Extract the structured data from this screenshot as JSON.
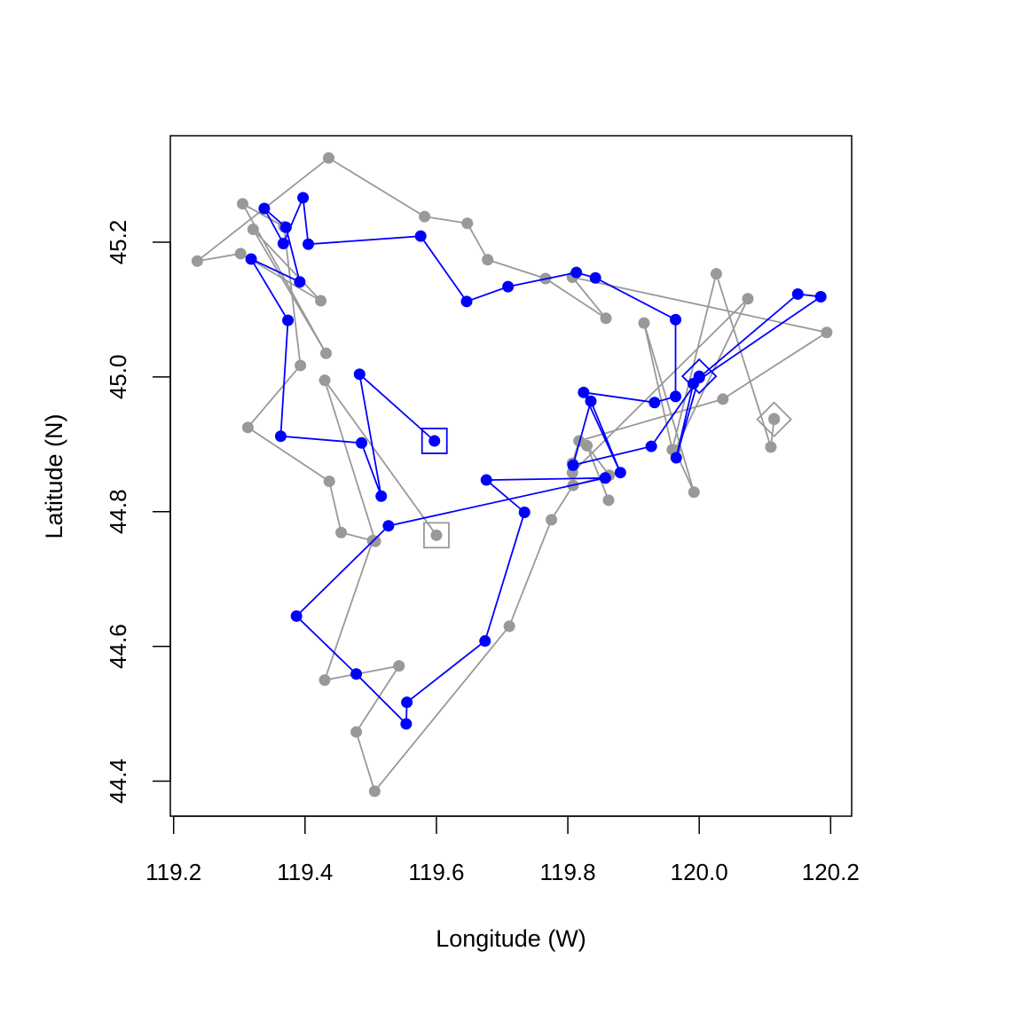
{
  "chart_data": {
    "type": "line",
    "title": "",
    "xlabel": "Longitude (W)",
    "ylabel": "Latitude (N)",
    "xlim": [
      119.195,
      120.232
    ],
    "ylim": [
      44.348,
      45.358
    ],
    "x_ticks": [
      "119.2",
      "119.4",
      "119.6",
      "119.8",
      "120.0",
      "120.2"
    ],
    "y_ticks": [
      "44.4",
      "44.6",
      "44.8",
      "45.0",
      "45.2"
    ],
    "grid": false,
    "legend": "none",
    "series": [
      {
        "color": "#999999",
        "start_marker": "square",
        "end_marker": "diamond",
        "points": [
          [
            119.6,
            44.765
          ],
          [
            119.43,
            44.995
          ],
          [
            119.507,
            44.756
          ],
          [
            119.455,
            44.769
          ],
          [
            119.437,
            44.845
          ],
          [
            119.313,
            44.925
          ],
          [
            119.393,
            45.017
          ],
          [
            119.368,
            45.223
          ],
          [
            119.305,
            45.257
          ],
          [
            119.432,
            45.035
          ],
          [
            119.321,
            45.219
          ],
          [
            119.424,
            45.113
          ],
          [
            119.302,
            45.183
          ],
          [
            119.236,
            45.172
          ],
          [
            119.436,
            45.325
          ],
          [
            119.582,
            45.238
          ],
          [
            119.647,
            45.228
          ],
          [
            119.678,
            45.174
          ],
          [
            119.766,
            45.146
          ],
          [
            119.858,
            45.087
          ],
          [
            119.807,
            45.148
          ],
          [
            120.194,
            45.066
          ],
          [
            120.036,
            44.967
          ],
          [
            119.817,
            44.905
          ],
          [
            119.807,
            44.872
          ],
          [
            119.807,
            44.858
          ],
          [
            120.074,
            45.116
          ],
          [
            119.963,
            44.891
          ],
          [
            119.992,
            44.829
          ],
          [
            119.916,
            45.08
          ],
          [
            119.959,
            44.892
          ],
          [
            120.026,
            45.153
          ],
          [
            120.109,
            44.896
          ],
          [
            120.114,
            44.938
          ],
          [
            120.114,
            44.937
          ]
        ],
        "points_b": [
          [
            119.862,
            44.817
          ],
          [
            119.829,
            44.898
          ],
          [
            119.863,
            44.854
          ],
          [
            119.808,
            44.839
          ],
          [
            119.775,
            44.788
          ],
          [
            119.711,
            44.63
          ],
          [
            119.506,
            44.385
          ],
          [
            119.478,
            44.473
          ],
          [
            119.543,
            44.571
          ],
          [
            119.43,
            44.55
          ],
          [
            119.503,
            44.757
          ]
        ]
      },
      {
        "color": "#0000ff",
        "start_marker": "square",
        "end_marker": "diamond",
        "points": [
          [
            119.597,
            44.905
          ],
          [
            119.483,
            45.004
          ],
          [
            119.516,
            44.823
          ],
          [
            119.486,
            44.902
          ],
          [
            119.363,
            44.912
          ],
          [
            119.374,
            45.084
          ],
          [
            119.318,
            45.175
          ],
          [
            119.392,
            45.141
          ],
          [
            119.371,
            45.222
          ],
          [
            119.338,
            45.25
          ],
          [
            119.367,
            45.198
          ],
          [
            119.397,
            45.266
          ],
          [
            119.405,
            45.197
          ],
          [
            119.576,
            45.209
          ],
          [
            119.646,
            45.112
          ],
          [
            119.709,
            45.134
          ],
          [
            119.813,
            45.155
          ],
          [
            119.842,
            45.147
          ],
          [
            119.964,
            45.085
          ],
          [
            119.964,
            44.971
          ],
          [
            119.932,
            44.962
          ],
          [
            119.824,
            44.977
          ],
          [
            119.88,
            44.858
          ],
          [
            119.835,
            44.964
          ],
          [
            119.808,
            44.869
          ],
          [
            119.927,
            44.897
          ],
          [
            120.0,
            44.999
          ],
          [
            120.15,
            45.123
          ],
          [
            120.185,
            45.119
          ],
          [
            119.991,
            44.99
          ],
          [
            119.965,
            44.88
          ],
          [
            120.0,
            45.001
          ]
        ],
        "points_b": [
          [
            119.857,
            44.85
          ],
          [
            119.676,
            44.847
          ],
          [
            119.734,
            44.799
          ],
          [
            119.674,
            44.608
          ],
          [
            119.555,
            44.517
          ],
          [
            119.554,
            44.485
          ],
          [
            119.478,
            44.559
          ],
          [
            119.387,
            44.645
          ],
          [
            119.527,
            44.779
          ],
          [
            119.857,
            44.85
          ]
        ]
      }
    ]
  }
}
